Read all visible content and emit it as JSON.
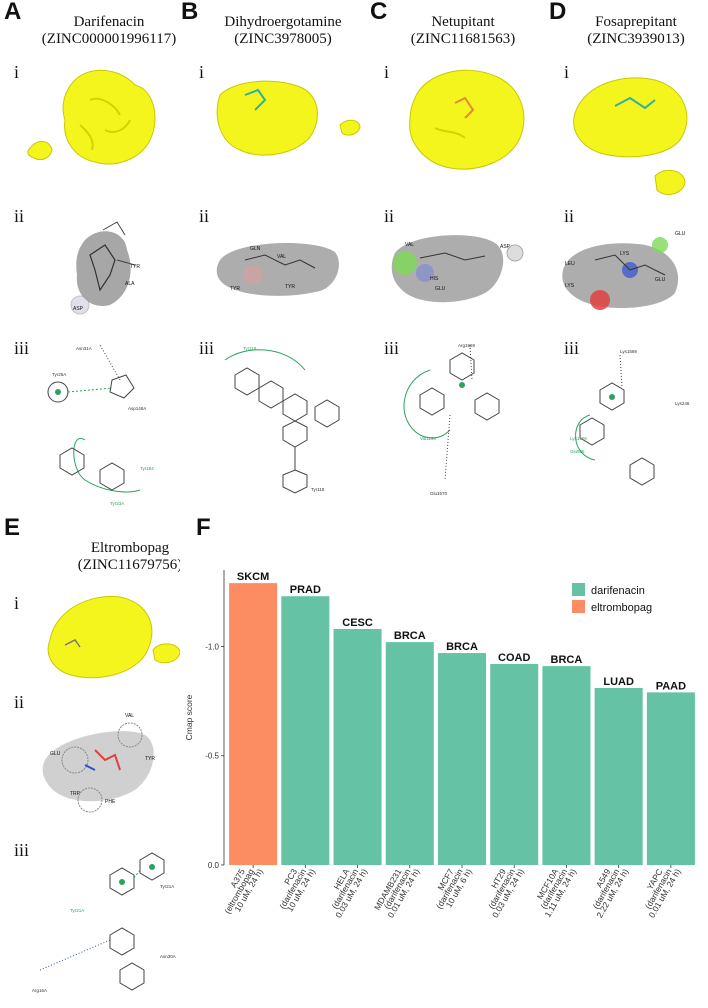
{
  "panels": {
    "A": {
      "letter": "A",
      "drug": "Darifenacin",
      "zinc": "(ZINC000001996117)"
    },
    "B": {
      "letter": "B",
      "drug": "Dihydroergotamine",
      "zinc": "(ZINC3978005)"
    },
    "C": {
      "letter": "C",
      "drug": "Netupitant",
      "zinc": "(ZINC11681563)"
    },
    "D": {
      "letter": "D",
      "drug": "Fosaprepitant",
      "zinc": "(ZINC3939013)"
    },
    "E": {
      "letter": "E",
      "drug": "Eltrombopag",
      "zinc": "(ZINC11679756)"
    },
    "F": {
      "letter": "F"
    }
  },
  "roman": {
    "i": "i",
    "ii": "ii",
    "iii": "iii"
  },
  "residues": {
    "A_ii": [
      "TYR",
      "ALA",
      "ASP"
    ],
    "A_iii": [
      "Asn31A",
      "Tyr25A",
      "Asp148A",
      "Tyr184",
      "Tyr23A"
    ],
    "B_ii": [
      "GLN",
      "VAL",
      "TYR",
      "TYR"
    ],
    "B_iii": [
      "Tyr118",
      "Tyr118"
    ],
    "C_ii": [
      "VAL",
      "ASP",
      "HIS",
      "GLU"
    ],
    "C_iii": [
      "Arg1569",
      "Val1196",
      "Glu1570"
    ],
    "D_ii": [
      "GLU",
      "LYS",
      "LEU",
      "GLU",
      "LYS"
    ],
    "D_iii": [
      "Lys1569",
      "Lys1566",
      "Glu995",
      "Lys246"
    ],
    "E_ii": [
      "VAL",
      "GLU",
      "PHE",
      "TRP",
      "TYR"
    ],
    "E_iii": [
      "Tyr21A",
      "Tyr21A",
      "Asn30A",
      "Arg16A"
    ]
  },
  "colors": {
    "darifenacin": "#66c2a5",
    "eltrombopag": "#fc8d62",
    "surface": "#f5f51e",
    "interaction": "#2ca25f"
  },
  "chart_data": {
    "type": "bar",
    "ylabel": "Cmap score",
    "ylim": [
      0,
      -1.35
    ],
    "yticks": [
      0.0,
      -0.5,
      -1.0
    ],
    "ytick_labels": [
      "0.0",
      "-0.5",
      "-1.0"
    ],
    "legend_position": "top-right",
    "legend": [
      {
        "name": "darifenacin",
        "color": "#66c2a5"
      },
      {
        "name": "eltrombopag",
        "color": "#fc8d62"
      }
    ],
    "categories": [
      [
        "A375",
        "(eltrombopag",
        "10 uM, 24 h)"
      ],
      [
        "PC3",
        "(darifenacin",
        "10 uM, 24 h)"
      ],
      [
        "HELA",
        "(darifenacin",
        "0.03 uM, 24 h)"
      ],
      [
        "MDAMB231",
        "(darifenacin",
        "0.01 uM, 24 h)"
      ],
      [
        "MCF7",
        "(darifenacin",
        "10 uM, 6 h)"
      ],
      [
        "HT29",
        "(darifenacin",
        "0.03 uM, 24 h)"
      ],
      [
        "MCF10A",
        "(darifenacin",
        "1.11 uM, 24 h)"
      ],
      [
        "A549",
        "(darifenacin",
        "2.22 uM, 24 h)"
      ],
      [
        "YAPC",
        "(darifenacin",
        "0.01 uM, 24 h)"
      ]
    ],
    "bar_labels": [
      "SKCM",
      "PRAD",
      "CESC",
      "BRCA",
      "BRCA",
      "COAD",
      "BRCA",
      "LUAD",
      "PAAD"
    ],
    "series_of_bar": [
      "eltrombopag",
      "darifenacin",
      "darifenacin",
      "darifenacin",
      "darifenacin",
      "darifenacin",
      "darifenacin",
      "darifenacin",
      "darifenacin"
    ],
    "values": [
      -1.29,
      -1.23,
      -1.08,
      -1.02,
      -0.97,
      -0.92,
      -0.91,
      -0.81,
      -0.79
    ]
  }
}
